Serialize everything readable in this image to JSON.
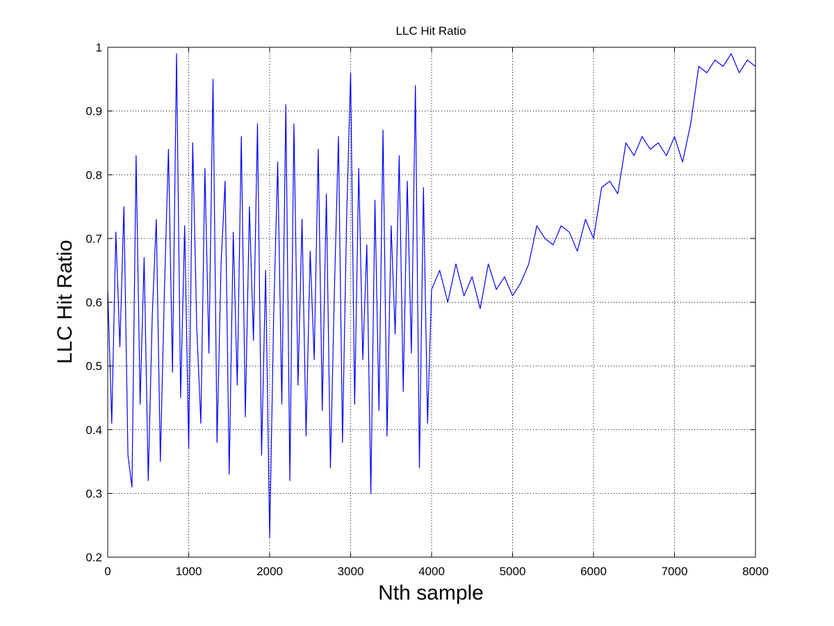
{
  "chart_data": {
    "type": "line",
    "title": "LLC Hit Ratio",
    "xlabel": "Nth sample",
    "ylabel": "LLC Hit Ratio",
    "xlim": [
      0,
      8000
    ],
    "ylim": [
      0.2,
      1
    ],
    "xticks": [
      0,
      1000,
      2000,
      3000,
      4000,
      5000,
      6000,
      7000,
      8000
    ],
    "yticks": [
      0.2,
      0.3,
      0.4,
      0.5,
      0.6,
      0.7,
      0.8,
      0.9,
      1
    ],
    "ytick_labels": [
      "0.2",
      "0.3",
      "0.4",
      "0.5",
      "0.6",
      "0.7",
      "0.8",
      "0.9",
      "1"
    ],
    "grid": true,
    "series_color": "#0000ff",
    "series": [
      {
        "x": [
          0,
          50,
          100,
          150,
          200,
          250,
          300,
          350,
          400,
          450,
          500,
          550,
          600,
          650,
          700,
          750,
          800,
          850,
          900,
          950,
          1000,
          1050,
          1100,
          1150,
          1200,
          1250,
          1300,
          1350,
          1400,
          1450,
          1500,
          1550,
          1600,
          1650,
          1700,
          1750,
          1800,
          1850,
          1900,
          1950,
          2000,
          2050,
          2100,
          2150,
          2200,
          2250,
          2300,
          2350,
          2400,
          2450,
          2500,
          2550,
          2600,
          2650,
          2700,
          2750,
          2800,
          2850,
          2900,
          2950,
          3000,
          3050,
          3100,
          3150,
          3200,
          3250,
          3300,
          3350,
          3400,
          3450,
          3500,
          3550,
          3600,
          3650,
          3700,
          3750,
          3800,
          3850,
          3900,
          3950,
          4000,
          4100,
          4200,
          4300,
          4400,
          4500,
          4600,
          4700,
          4800,
          4900,
          5000,
          5100,
          5200,
          5300,
          5400,
          5500,
          5600,
          5700,
          5800,
          5900,
          6000,
          6100,
          6200,
          6300,
          6400,
          6500,
          6600,
          6700,
          6800,
          6900,
          7000,
          7100,
          7200,
          7300,
          7400,
          7500,
          7600,
          7700,
          7800,
          7900,
          8000
        ],
        "y": [
          0.62,
          0.41,
          0.71,
          0.53,
          0.75,
          0.36,
          0.31,
          0.83,
          0.44,
          0.67,
          0.32,
          0.58,
          0.73,
          0.35,
          0.62,
          0.84,
          0.49,
          0.99,
          0.45,
          0.72,
          0.37,
          0.85,
          0.56,
          0.41,
          0.81,
          0.52,
          0.95,
          0.38,
          0.66,
          0.79,
          0.33,
          0.71,
          0.47,
          0.86,
          0.42,
          0.75,
          0.54,
          0.88,
          0.36,
          0.65,
          0.23,
          0.58,
          0.82,
          0.44,
          0.91,
          0.32,
          0.88,
          0.47,
          0.73,
          0.39,
          0.68,
          0.51,
          0.84,
          0.43,
          0.77,
          0.34,
          0.62,
          0.86,
          0.38,
          0.73,
          0.96,
          0.44,
          0.81,
          0.51,
          0.69,
          0.3,
          0.76,
          0.43,
          0.87,
          0.39,
          0.72,
          0.55,
          0.83,
          0.46,
          0.79,
          0.52,
          0.94,
          0.34,
          0.78,
          0.41,
          0.62,
          0.65,
          0.6,
          0.66,
          0.61,
          0.64,
          0.59,
          0.66,
          0.62,
          0.64,
          0.61,
          0.63,
          0.66,
          0.72,
          0.7,
          0.69,
          0.72,
          0.71,
          0.68,
          0.73,
          0.7,
          0.78,
          0.79,
          0.77,
          0.85,
          0.83,
          0.86,
          0.84,
          0.85,
          0.83,
          0.86,
          0.82,
          0.88,
          0.97,
          0.96,
          0.98,
          0.97,
          0.99,
          0.96,
          0.98,
          0.97
        ]
      }
    ]
  }
}
